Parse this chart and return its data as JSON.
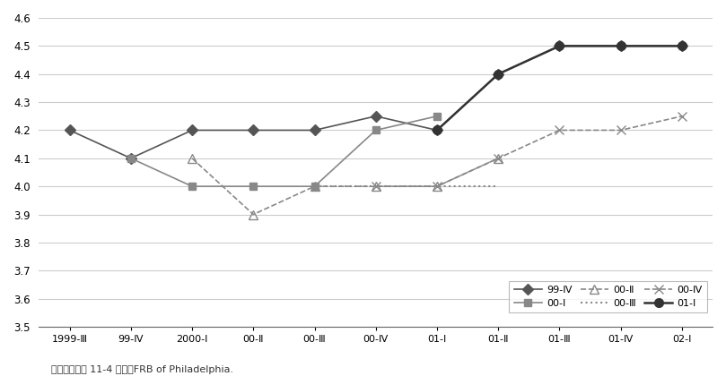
{
  "x_labels": [
    "1999-Ⅲ",
    "99-Ⅳ",
    "2000-Ⅰ",
    "00-Ⅱ",
    "00-Ⅲ",
    "00-Ⅳ",
    "01-Ⅰ",
    "01-Ⅱ",
    "01-Ⅲ",
    "01-Ⅳ",
    "02-Ⅰ"
  ],
  "x_indices": [
    0,
    1,
    2,
    3,
    4,
    5,
    6,
    7,
    8,
    9,
    10
  ],
  "series": [
    {
      "label": "99-Ⅳ",
      "x": [
        0,
        1,
        2,
        3,
        4,
        5,
        6,
        7,
        8,
        9,
        10
      ],
      "y": [
        4.2,
        4.1,
        4.2,
        4.2,
        4.2,
        4.25,
        4.2,
        4.4,
        4.5,
        4.5,
        4.5
      ],
      "color": "#555555",
      "linestyle": "-",
      "marker": "D",
      "markersize": 6,
      "linewidth": 1.2,
      "markerfill": "#555555"
    },
    {
      "label": "00-Ⅰ",
      "x": [
        1,
        2,
        3,
        4,
        5,
        6
      ],
      "y": [
        4.1,
        4.0,
        4.0,
        4.0,
        4.2,
        4.25
      ],
      "color": "#888888",
      "linestyle": "-",
      "marker": "s",
      "markersize": 6,
      "linewidth": 1.2,
      "markerfill": "#888888"
    },
    {
      "label": "00-Ⅱ",
      "x": [
        2,
        3,
        4,
        5,
        6,
        7
      ],
      "y": [
        4.1,
        3.9,
        4.0,
        4.0,
        4.0,
        4.1
      ],
      "color": "#888888",
      "linestyle": "--",
      "marker": "^",
      "markersize": 7,
      "linewidth": 1.2,
      "markerfill": "none"
    },
    {
      "label": "00-Ⅲ",
      "x": [
        4,
        5,
        6,
        7
      ],
      "y": [
        4.0,
        4.0,
        4.0,
        4.0
      ],
      "color": "#888888",
      "linestyle": ":",
      "marker": null,
      "markersize": 0,
      "linewidth": 1.5,
      "markerfill": "none"
    },
    {
      "label": "00-Ⅳ",
      "x": [
        5,
        6,
        7,
        8,
        9,
        10
      ],
      "y": [
        4.0,
        4.0,
        4.1,
        4.2,
        4.2,
        4.25
      ],
      "color": "#888888",
      "linestyle": "--",
      "marker": "x",
      "markersize": 7,
      "linewidth": 1.2,
      "markerfill": "#888888"
    },
    {
      "label": "01-Ⅰ",
      "x": [
        6,
        7,
        8,
        9,
        10
      ],
      "y": [
        4.2,
        4.4,
        4.5,
        4.5,
        4.5
      ],
      "color": "#333333",
      "linestyle": "-",
      "marker": "o",
      "markersize": 7,
      "linewidth": 1.8,
      "markerfill": "#333333"
    }
  ],
  "ylim": [
    3.5,
    4.6
  ],
  "yticks": [
    3.5,
    3.6,
    3.7,
    3.8,
    3.9,
    4.0,
    4.1,
    4.2,
    4.3,
    4.4,
    4.5,
    4.6
  ],
  "background_color": "#ffffff",
  "grid_color": "#cccccc",
  "source_text": "出所）　図表 11-4 まで，FRB of Philadelphia."
}
